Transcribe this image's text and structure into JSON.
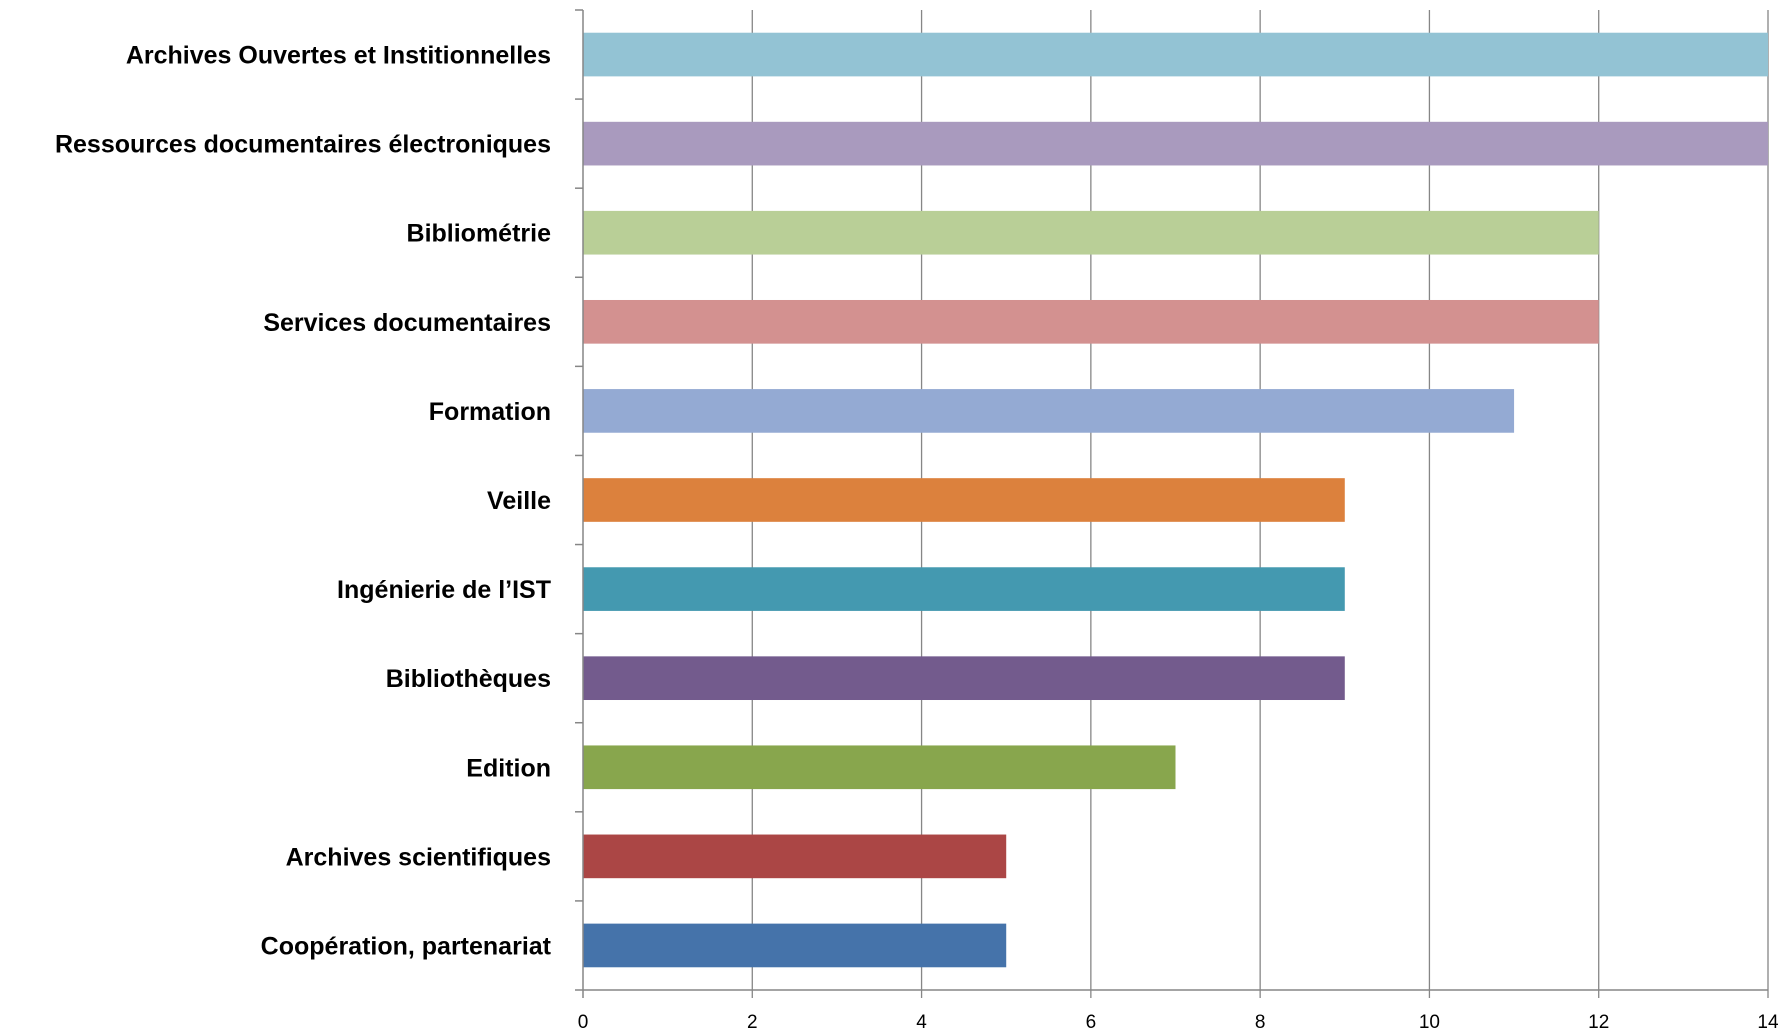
{
  "chart_data": {
    "type": "bar",
    "orientation": "horizontal",
    "title": "",
    "xlabel": "",
    "ylabel": "",
    "xlim": [
      0,
      14
    ],
    "x_ticks": [
      0,
      2,
      4,
      6,
      8,
      10,
      12,
      14
    ],
    "grid": true,
    "legend": "none",
    "categories": [
      "Archives Ouvertes et Institionnelles",
      "Ressources documentaires électroniques",
      "Bibliométrie",
      "Services documentaires",
      "Formation",
      "Veille",
      "Ingénierie de l’IST",
      "Bibliothèques",
      "Edition",
      "Archives scientifiques",
      "Coopération, partenariat"
    ],
    "values": [
      14,
      14,
      12,
      12,
      11,
      9,
      9,
      9,
      7,
      5,
      5
    ],
    "colors": [
      "#93c3d4",
      "#a99abe",
      "#b9cf97",
      "#d39190",
      "#94aad3",
      "#dc813d",
      "#4499b0",
      "#735b8d",
      "#88a64d",
      "#ab4645",
      "#4573aa"
    ]
  }
}
